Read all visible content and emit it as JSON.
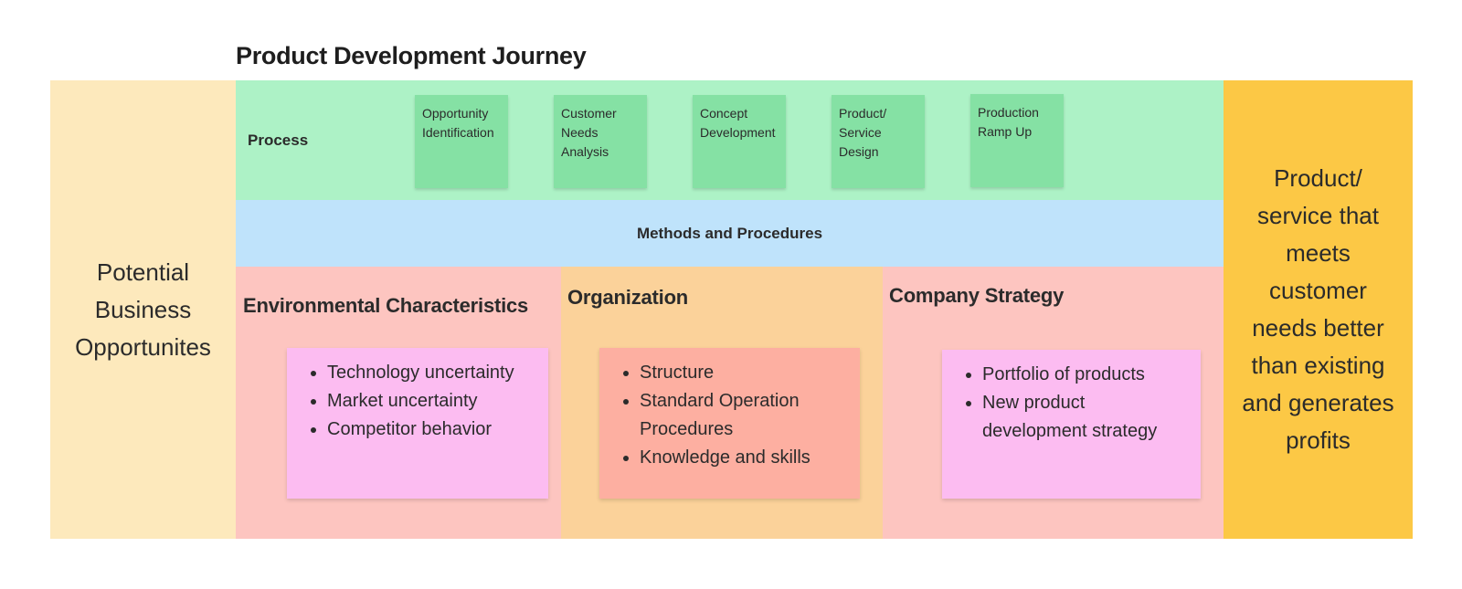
{
  "title": "Product Development Journey",
  "left_panel": {
    "text": "Potential Business Opportunites"
  },
  "right_panel": {
    "text": "Product/ service that meets customer needs better than existing and generates profits"
  },
  "process": {
    "label": "Process",
    "steps": [
      {
        "label": "Opportunity Identification"
      },
      {
        "label": "Customer Needs Analysis"
      },
      {
        "label": "Concept Development"
      },
      {
        "label": "Product/ Service Design"
      },
      {
        "label": "Production Ramp Up"
      }
    ]
  },
  "methods": {
    "label": "Methods and Procedures"
  },
  "columns": [
    {
      "title": "Environmental Characteristics",
      "items": [
        "Technology uncertainty",
        "Market uncertainty",
        "Competitor behavior"
      ]
    },
    {
      "title": "Organization",
      "items": [
        "Structure",
        "Standard Operation Procedures",
        "Knowledge and skills"
      ]
    },
    {
      "title": "Company Strategy",
      "items": [
        "Portfolio of products",
        "New product development strategy"
      ]
    }
  ],
  "colors": {
    "left_panel": "#fde9bc",
    "right_panel": "#fcc845",
    "process_band": "#adf2c6",
    "process_sticky": "#85e1a4",
    "methods_band": "#bfe3fb",
    "environment_column": "#fdc5c0",
    "organization_column": "#fbd29a",
    "strategy_column": "#fdc5c0",
    "pink_note": "#fcbcf1",
    "salmon_note": "#fdafa1"
  }
}
